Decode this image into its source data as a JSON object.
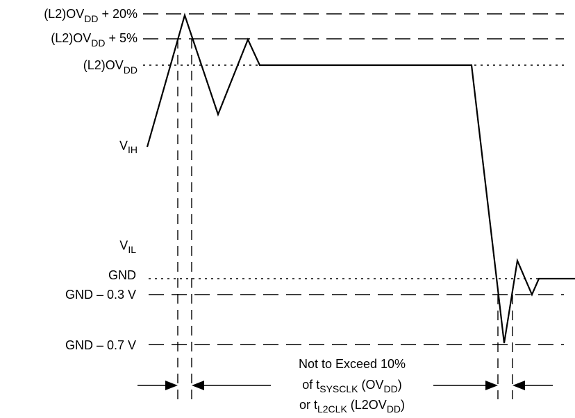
{
  "levels": {
    "ovdd_plus_20": {
      "base": "(L2)OV",
      "sub": "DD",
      "suffix": " + 20%"
    },
    "ovdd_plus_5": {
      "base": "(L2)OV",
      "sub": "DD",
      "suffix": " + 5%"
    },
    "ovdd": {
      "base": "(L2)OV",
      "sub": "DD"
    },
    "vih": {
      "base": "V",
      "sub": "IH"
    },
    "vil": {
      "base": "V",
      "sub": "IL"
    },
    "gnd": {
      "text": "GND"
    },
    "gnd_minus_03": {
      "text": "GND – 0.3 V"
    },
    "gnd_minus_07": {
      "text": "GND – 0.7 V"
    }
  },
  "annotation": {
    "line1": "Not to Exceed 10%",
    "line2": {
      "pre": "of t",
      "sub1": "SYSCLK",
      "mid": " (OV",
      "sub2": "DD",
      "post": ")"
    },
    "line3": {
      "pre": "or t",
      "sub1": "L2CLK",
      "mid": " (L2OV",
      "sub2": "DD",
      "post": ")"
    }
  }
}
